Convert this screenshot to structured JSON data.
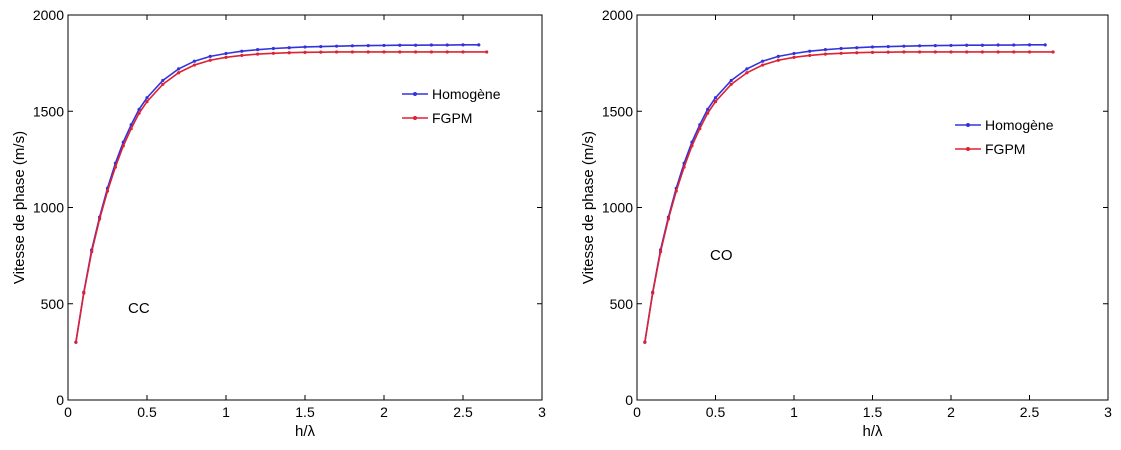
{
  "chart_data": [
    {
      "type": "line",
      "xlabel": "h/λ",
      "ylabel": "Vitesse de phase (m/s)",
      "xlim": [
        0,
        3
      ],
      "ylim": [
        0,
        2000
      ],
      "xticks": [
        0,
        0.5,
        1,
        1.5,
        2,
        2.5,
        3
      ],
      "xtick_labels": [
        "0",
        "0.5",
        "1",
        "1.5",
        "2",
        "2.5",
        "3"
      ],
      "yticks": [
        0,
        500,
        1000,
        1500,
        2000
      ],
      "ytick_labels": [
        "0",
        "500",
        "1000",
        "1500",
        "2000"
      ],
      "grid": false,
      "legend_position": "upper-right",
      "annotation": "CC",
      "series": [
        {
          "name": "Homogène",
          "color": "#3333dd",
          "x": [
            0.05,
            0.1,
            0.15,
            0.2,
            0.25,
            0.3,
            0.35,
            0.4,
            0.45,
            0.5,
            0.6,
            0.7,
            0.8,
            0.9,
            1.0,
            1.1,
            1.2,
            1.3,
            1.4,
            1.5,
            1.6,
            1.7,
            1.8,
            1.9,
            2.0,
            2.1,
            2.2,
            2.3,
            2.4,
            2.5,
            2.6
          ],
          "y": [
            300,
            560,
            780,
            950,
            1100,
            1230,
            1340,
            1430,
            1510,
            1570,
            1660,
            1720,
            1760,
            1785,
            1800,
            1812,
            1820,
            1826,
            1830,
            1834,
            1836,
            1838,
            1840,
            1841,
            1842,
            1843,
            1843,
            1844,
            1844,
            1845,
            1845
          ]
        },
        {
          "name": "FGPM",
          "color": "#dd2233",
          "x": [
            0.05,
            0.1,
            0.15,
            0.2,
            0.25,
            0.3,
            0.35,
            0.4,
            0.45,
            0.5,
            0.6,
            0.7,
            0.8,
            0.9,
            1.0,
            1.1,
            1.2,
            1.3,
            1.4,
            1.5,
            1.6,
            1.7,
            1.8,
            1.9,
            2.0,
            2.1,
            2.2,
            2.3,
            2.4,
            2.5,
            2.65
          ],
          "y": [
            300,
            555,
            770,
            940,
            1085,
            1210,
            1320,
            1410,
            1490,
            1550,
            1640,
            1700,
            1740,
            1765,
            1780,
            1790,
            1797,
            1801,
            1804,
            1806,
            1807,
            1808,
            1808,
            1808,
            1808,
            1808,
            1808,
            1808,
            1808,
            1808,
            1808
          ]
        }
      ]
    },
    {
      "type": "line",
      "xlabel": "h/λ",
      "ylabel": "Vitesse de phase (m/s)",
      "xlim": [
        0,
        3
      ],
      "ylim": [
        0,
        2000
      ],
      "xticks": [
        0,
        0.5,
        1,
        1.5,
        2,
        2.5,
        3
      ],
      "xtick_labels": [
        "0",
        "0.5",
        "1",
        "1.5",
        "2",
        "2.5",
        "3"
      ],
      "yticks": [
        0,
        500,
        1000,
        1500,
        2000
      ],
      "ytick_labels": [
        "0",
        "500",
        "1000",
        "1500",
        "2000"
      ],
      "grid": false,
      "legend_position": "right",
      "annotation": "CO",
      "series": [
        {
          "name": "Homogène",
          "color": "#3333dd",
          "x": [
            0.05,
            0.1,
            0.15,
            0.2,
            0.25,
            0.3,
            0.35,
            0.4,
            0.45,
            0.5,
            0.6,
            0.7,
            0.8,
            0.9,
            1.0,
            1.1,
            1.2,
            1.3,
            1.4,
            1.5,
            1.6,
            1.7,
            1.8,
            1.9,
            2.0,
            2.1,
            2.2,
            2.3,
            2.4,
            2.5,
            2.6
          ],
          "y": [
            300,
            560,
            780,
            950,
            1100,
            1230,
            1340,
            1430,
            1510,
            1570,
            1660,
            1720,
            1760,
            1785,
            1800,
            1812,
            1820,
            1826,
            1830,
            1834,
            1836,
            1838,
            1840,
            1841,
            1842,
            1843,
            1843,
            1844,
            1844,
            1845,
            1845
          ]
        },
        {
          "name": "FGPM",
          "color": "#dd2233",
          "x": [
            0.05,
            0.1,
            0.15,
            0.2,
            0.25,
            0.3,
            0.35,
            0.4,
            0.45,
            0.5,
            0.6,
            0.7,
            0.8,
            0.9,
            1.0,
            1.1,
            1.2,
            1.3,
            1.4,
            1.5,
            1.6,
            1.7,
            1.8,
            1.9,
            2.0,
            2.1,
            2.2,
            2.3,
            2.4,
            2.5,
            2.65
          ],
          "y": [
            300,
            555,
            770,
            940,
            1085,
            1210,
            1320,
            1410,
            1490,
            1550,
            1640,
            1700,
            1740,
            1765,
            1780,
            1790,
            1797,
            1801,
            1804,
            1806,
            1807,
            1808,
            1808,
            1808,
            1808,
            1808,
            1808,
            1808,
            1808,
            1808,
            1808
          ]
        }
      ]
    }
  ]
}
